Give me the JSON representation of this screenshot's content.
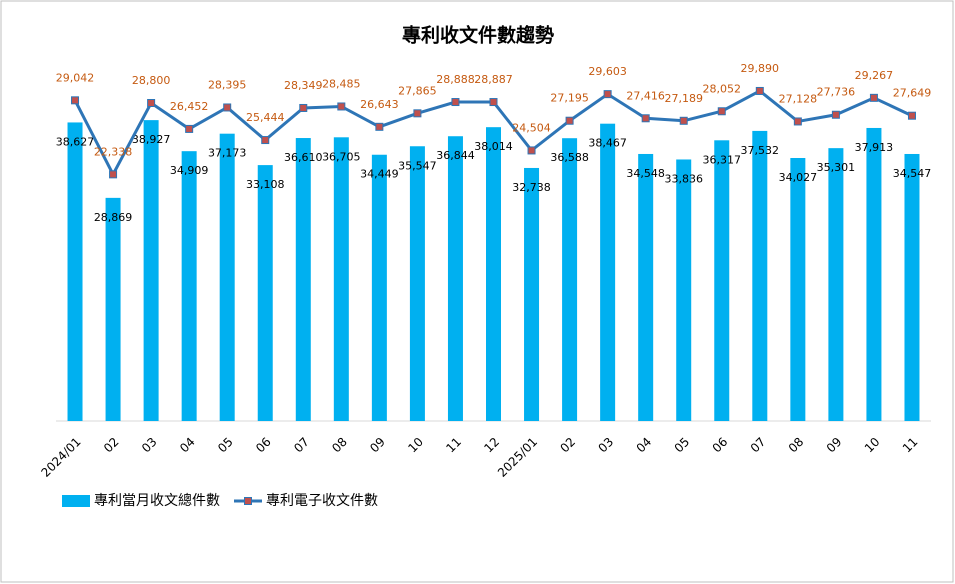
{
  "chart_data": {
    "type": "bar_line",
    "title": "專利收文件數趨勢",
    "categories": [
      "2024/01",
      "02",
      "03",
      "04",
      "05",
      "06",
      "07",
      "08",
      "09",
      "10",
      "11",
      "12",
      "2025/01",
      "02",
      "03",
      "04",
      "05",
      "06",
      "07",
      "08",
      "09",
      "10",
      "11"
    ],
    "series": [
      {
        "name": "專利當月收文總件數",
        "type": "bar",
        "color": "#00b0f0",
        "label_color": "#000000",
        "values": [
          38627,
          28869,
          38927,
          34909,
          37173,
          33108,
          36610,
          36705,
          34449,
          35547,
          36844,
          38014,
          32738,
          36588,
          38467,
          34548,
          33836,
          36317,
          37532,
          34027,
          35301,
          37913,
          34547
        ],
        "value_labels": [
          "38,627",
          "28,869",
          "38,927",
          "34,909",
          "37,173",
          "33,108",
          "36,610",
          "36,705",
          "34,449",
          "35,547",
          "36,844",
          "38,014",
          "32,738",
          "36,588",
          "38,467",
          "34,548",
          "33,836",
          "36,317",
          "37,532",
          "34,027",
          "35,301",
          "37,913",
          "34,547"
        ]
      },
      {
        "name": "專利電子收文件數",
        "type": "line",
        "axis": "y2",
        "color": "#2e75b6",
        "marker_color": "#c0504d",
        "label_color": "#c55a11",
        "values": [
          29042,
          22338,
          28800,
          26452,
          28395,
          25444,
          28349,
          28485,
          26643,
          27865,
          28888,
          28887,
          24504,
          27195,
          29603,
          27416,
          27189,
          28052,
          29890,
          27128,
          27736,
          29267,
          27649
        ],
        "value_labels": [
          "29,042",
          "22,338",
          "28,800",
          "26,452",
          "28,395",
          "25,444",
          "28,349",
          "28,485",
          "26,643",
          "27,865",
          "28,888",
          "28,887",
          "24,504",
          "27,195",
          "29,603",
          "27,416",
          "27,189",
          "28,052",
          "29,890",
          "27,128",
          "27,736",
          "29,267",
          "27,649"
        ]
      }
    ],
    "ylim": [
      0,
      48000
    ],
    "y2lim": [
      0,
      33600
    ],
    "legend": "bottom-left"
  }
}
